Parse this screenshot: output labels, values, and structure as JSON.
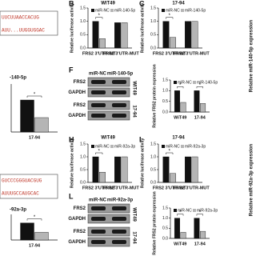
{
  "chart_data": [
    {
      "type": "bar",
      "title": "-140-5p",
      "categories": [
        "17-94"
      ],
      "ylim": [
        0,
        1.5
      ],
      "series": [
        {
          "color": "#111111",
          "values": [
            1.0
          ]
        },
        {
          "color": "#b5b5b5",
          "values": [
            0.45
          ]
        }
      ],
      "significance": [
        "*"
      ]
    },
    {
      "type": "bar",
      "title": "-92a-3p",
      "categories": [
        "17-94"
      ],
      "ylim": [
        0,
        1.5
      ],
      "series": [
        {
          "color": "#111111",
          "values": [
            1.0
          ]
        },
        {
          "color": "#b5b5b5",
          "values": [
            0.45
          ]
        }
      ],
      "significance": [
        "*"
      ]
    },
    {
      "type": "bar",
      "panel": "B",
      "title": "WiT49",
      "ylabel": "Relative luciferase activity",
      "categories": [
        "FRS2 3'UTR-WT",
        "FRS2 3'UTR-MUT"
      ],
      "ylim": [
        0,
        1.5
      ],
      "yticks": [
        {
          "value": 0,
          "label": "0.0"
        },
        {
          "value": 0.5,
          "label": "0.5"
        },
        {
          "value": 1,
          "label": "1.0"
        },
        {
          "value": 1.5,
          "label": "1.5"
        }
      ],
      "series": [
        {
          "name": "miR-NC",
          "color": "#111111",
          "values": [
            1.0,
            0.95
          ]
        },
        {
          "name": "miR-140-5p",
          "color": "#b5b5b5",
          "values": [
            0.35,
            0.95
          ]
        }
      ],
      "significance": [
        "*",
        null
      ]
    },
    {
      "type": "bar",
      "panel": "C",
      "title": "17-94",
      "ylabel": "Relative luciferase activity",
      "categories": [
        "FRS2 3'UTR-WT",
        "FRS2 3'UTR-MUT"
      ],
      "ylim": [
        0,
        1.5
      ],
      "yticks": [
        {
          "value": 0,
          "label": "0.0"
        },
        {
          "value": 0.5,
          "label": "0.5"
        },
        {
          "value": 1,
          "label": "1.0"
        },
        {
          "value": 1.5,
          "label": "1.5"
        }
      ],
      "series": [
        {
          "name": "miR-NC",
          "color": "#111111",
          "values": [
            1.0,
            1.0
          ]
        },
        {
          "name": "miR-140-5p",
          "color": "#b5b5b5",
          "values": [
            0.4,
            1.0
          ]
        }
      ],
      "significance": [
        "*",
        null
      ]
    },
    {
      "type": "bar",
      "ylabel": "Relative FRS2 protein expression",
      "categories": [
        "WiT49",
        "17-94"
      ],
      "ylim": [
        0,
        1.5
      ],
      "yticks": [
        {
          "value": 0,
          "label": "0.0"
        },
        {
          "value": 0.5,
          "label": "0.5"
        },
        {
          "value": 1,
          "label": "1.0"
        },
        {
          "value": 1.5,
          "label": "1.5"
        }
      ],
      "series": [
        {
          "name": "miR-NC",
          "color": "#111111",
          "values": [
            1.0,
            1.0
          ]
        },
        {
          "name": "miR-140-5p",
          "color": "#b5b5b5",
          "values": [
            0.45,
            0.4
          ]
        }
      ],
      "significance": [
        "*",
        "*"
      ]
    },
    {
      "type": "bar",
      "panel": "H",
      "title": "WiT49",
      "ylabel": "Relative luciferase activity",
      "categories": [
        "FRS2 3'UTR-WT",
        "FRS2 3'UTR-MUT"
      ],
      "ylim": [
        0,
        1.5
      ],
      "yticks": [
        {
          "value": 0,
          "label": "0.0"
        },
        {
          "value": 0.5,
          "label": "0.5"
        },
        {
          "value": 1,
          "label": "1.0"
        },
        {
          "value": 1.5,
          "label": "1.5"
        }
      ],
      "series": [
        {
          "name": "miR-NC",
          "color": "#111111",
          "values": [
            1.0,
            1.0
          ]
        },
        {
          "name": "miR-92a-3p",
          "color": "#b5b5b5",
          "values": [
            0.4,
            1.0
          ]
        }
      ],
      "significance": [
        "*",
        null
      ]
    },
    {
      "type": "bar",
      "panel": "I",
      "title": "17-94",
      "ylabel": "Relative luciferase activity",
      "categories": [
        "FRS2 3'UTR-WT",
        "FRS2 3'UTR-MUT"
      ],
      "ylim": [
        0,
        1.5
      ],
      "yticks": [
        {
          "value": 0,
          "label": "0.0"
        },
        {
          "value": 0.5,
          "label": "0.5"
        },
        {
          "value": 1,
          "label": "1.0"
        },
        {
          "value": 1.5,
          "label": "1.5"
        }
      ],
      "series": [
        {
          "name": "miR-NC",
          "color": "#111111",
          "values": [
            1.0,
            1.0
          ]
        },
        {
          "name": "miR-92a-3p",
          "color": "#b5b5b5",
          "values": [
            0.35,
            1.0
          ]
        }
      ],
      "significance": [
        "*",
        null
      ]
    },
    {
      "type": "bar",
      "ylabel": "Relative FRS2 protein expression",
      "categories": [
        "WiT49",
        "17-94"
      ],
      "ylim": [
        0,
        1.5
      ],
      "yticks": [
        {
          "value": 0,
          "label": "0.0"
        },
        {
          "value": 0.5,
          "label": "0.5"
        },
        {
          "value": 1,
          "label": "1.0"
        },
        {
          "value": 1.5,
          "label": "1.5"
        }
      ],
      "series": [
        {
          "name": "miR-NC",
          "color": "#111111",
          "values": [
            1.0,
            1.0
          ]
        },
        {
          "name": "miR-92a-3p",
          "color": "#b5b5b5",
          "values": [
            0.3,
            0.35
          ]
        }
      ],
      "significance": [
        "*",
        "*"
      ]
    }
  ],
  "blots": [
    {
      "panel": "F",
      "groups": [
        "miR-NC",
        "miR-140-5p"
      ],
      "rows": [
        "FRS2",
        "GAPDH",
        "FRS2",
        "GAPDH"
      ],
      "cells": [
        "WiT49",
        "17-94"
      ]
    },
    {
      "panel": "L",
      "groups": [
        "miR-NC",
        "miR-92a-3p"
      ],
      "rows": [
        "FRS2",
        "GAPDH",
        "FRS2",
        "GAPDH"
      ],
      "cells": [
        "WiT49",
        "17-94"
      ]
    }
  ],
  "sequences": [
    [
      "UUCUUAACCACUG",
      "AUU...UUGGUGGAC"
    ],
    [
      "GUCCCGGGUACGUG",
      "AUUUGCCAUGCAC"
    ]
  ],
  "side_labels": [
    "Relative miR-140-5p expression",
    "Relative miR-92a-3p expression"
  ]
}
